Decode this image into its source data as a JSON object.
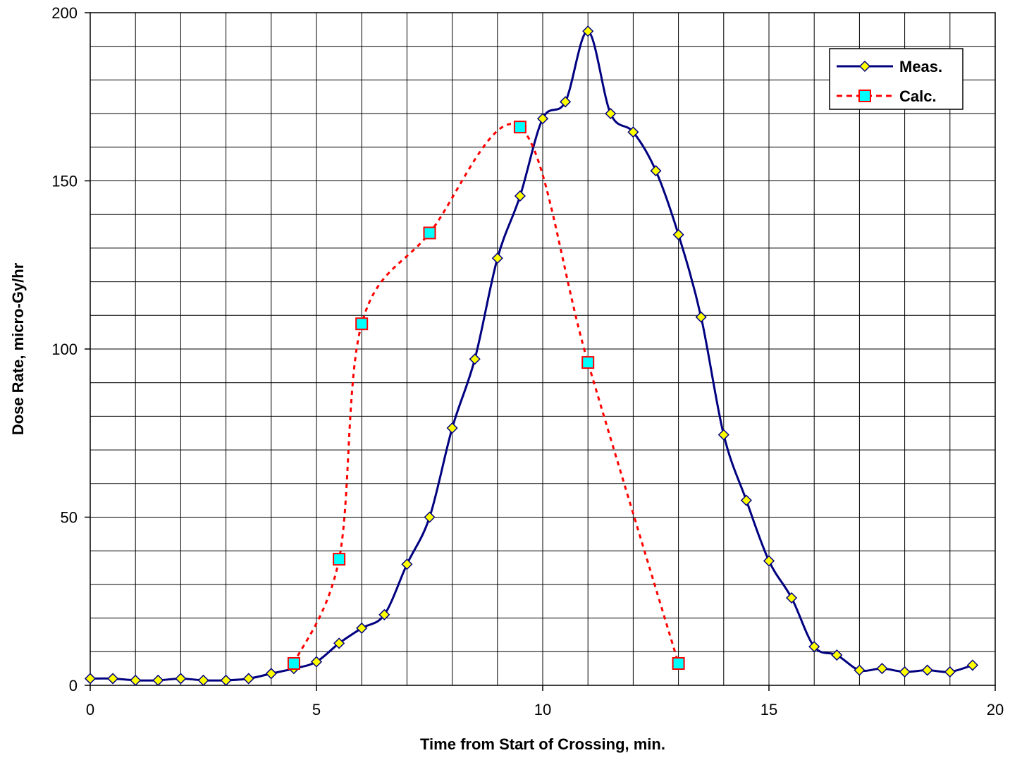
{
  "chart_data": {
    "type": "line",
    "xlabel": "Time from Start of Crossing, min.",
    "ylabel": "Dose Rate, micro-Gy/hr",
    "xlim": [
      0,
      20
    ],
    "ylim": [
      0,
      200
    ],
    "x_ticks": [
      0,
      5,
      10,
      15,
      20
    ],
    "y_ticks": [
      0,
      50,
      100,
      150,
      200
    ],
    "x_minor_step": 1,
    "y_minor_step": 10,
    "grid": true,
    "legend_position": "top-right",
    "series": [
      {
        "name": "Meas.",
        "line_color": "#000080",
        "line_style": "solid",
        "marker": "diamond",
        "marker_fill": "#ffff00",
        "points": [
          [
            0,
            2
          ],
          [
            0.5,
            2
          ],
          [
            1,
            1.5
          ],
          [
            1.5,
            1.5
          ],
          [
            2,
            2
          ],
          [
            2.5,
            1.5
          ],
          [
            3,
            1.5
          ],
          [
            3.5,
            2
          ],
          [
            4,
            3.5
          ],
          [
            4.5,
            5
          ],
          [
            5,
            7
          ],
          [
            5.5,
            12.5
          ],
          [
            6,
            17
          ],
          [
            6.5,
            21
          ],
          [
            7,
            36
          ],
          [
            7.5,
            50
          ],
          [
            8,
            76.5
          ],
          [
            8.5,
            97
          ],
          [
            9,
            127
          ],
          [
            9.5,
            145.5
          ],
          [
            10,
            168.5
          ],
          [
            10.5,
            173.5
          ],
          [
            11,
            194.5
          ],
          [
            11.5,
            170
          ],
          [
            12,
            164.5
          ],
          [
            12.5,
            153
          ],
          [
            13,
            134
          ],
          [
            13.5,
            109.5
          ],
          [
            14,
            74.5
          ],
          [
            14.5,
            55
          ],
          [
            15,
            37
          ],
          [
            15.5,
            26
          ],
          [
            16,
            11.5
          ],
          [
            16.5,
            9
          ],
          [
            17,
            4.5
          ],
          [
            17.5,
            5
          ],
          [
            18,
            4
          ],
          [
            18.5,
            4.5
          ],
          [
            19,
            4
          ],
          [
            19.5,
            6
          ]
        ]
      },
      {
        "name": "Calc.",
        "line_color": "#ff0000",
        "line_style": "dashed",
        "marker": "square",
        "marker_fill": "#00ffff",
        "points": [
          [
            4.5,
            6.5
          ],
          [
            5.5,
            37.5
          ],
          [
            6,
            107.5
          ],
          [
            7.5,
            134.5
          ],
          [
            9.5,
            166
          ],
          [
            11,
            96
          ],
          [
            13,
            6.5
          ]
        ]
      }
    ]
  }
}
